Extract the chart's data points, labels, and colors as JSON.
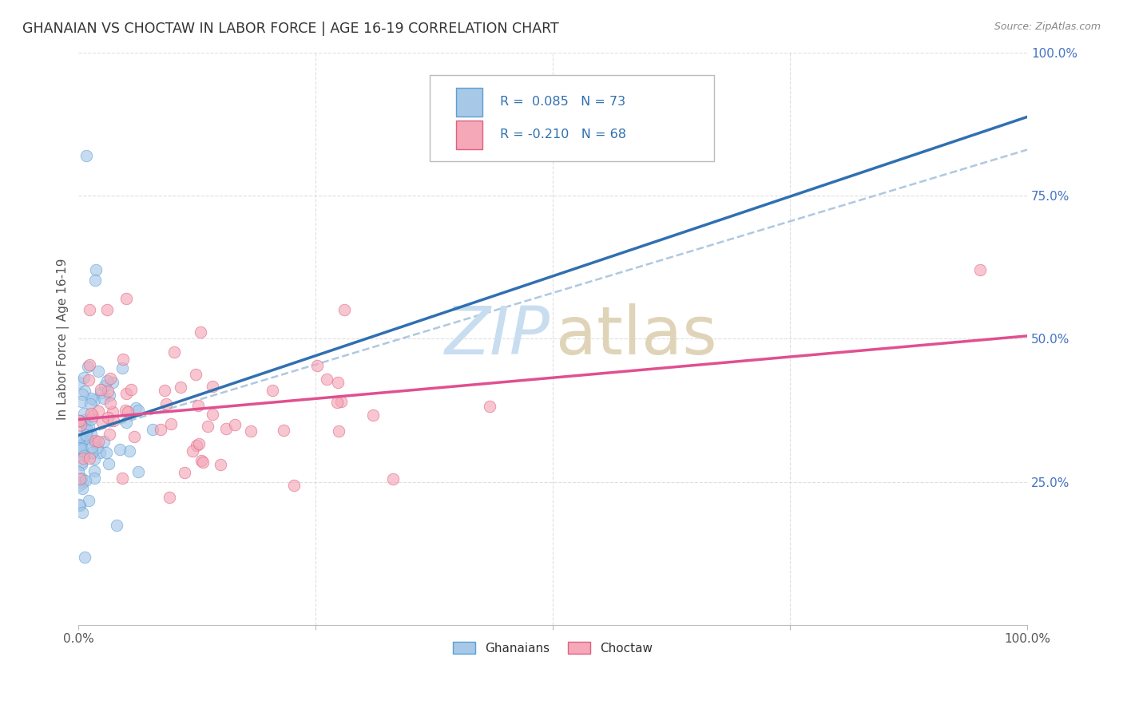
{
  "title": "GHANAIAN VS CHOCTAW IN LABOR FORCE | AGE 16-19 CORRELATION CHART",
  "source_text": "Source: ZipAtlas.com",
  "ylabel": "In Labor Force | Age 16-19",
  "blue_color": "#a8c8e8",
  "blue_edge_color": "#5a9fd4",
  "pink_color": "#f4a8b8",
  "pink_edge_color": "#e06080",
  "trendline_blue": "#3070b0",
  "trendline_pink": "#e05090",
  "trendline_dashed_color": "#b0c8e0",
  "background_color": "#ffffff",
  "grid_color": "#d8d8d8",
  "right_tick_color": "#4472c4",
  "title_color": "#333333",
  "source_color": "#888888",
  "watermark_zip_color": "#c8ddf0",
  "watermark_atlas_color": "#e0d4b8",
  "ylim_min": 0.0,
  "ylim_max": 1.0,
  "xlim_min": 0.0,
  "xlim_max": 1.0
}
